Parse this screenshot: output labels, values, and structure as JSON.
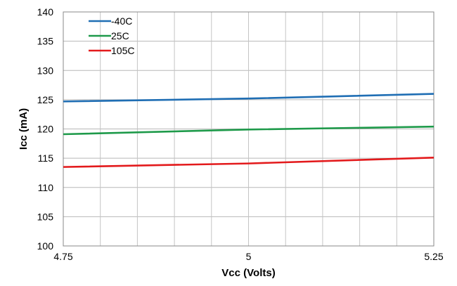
{
  "chart_data": {
    "type": "line",
    "title": "",
    "xlabel": "Vcc (Volts)",
    "ylabel": "Icc (mA)",
    "xlim": [
      4.75,
      5.25
    ],
    "ylim": [
      100,
      140
    ],
    "x_ticks": [
      4.75,
      5,
      5.25
    ],
    "x_tick_labels": [
      "4.75",
      "5",
      "5.25"
    ],
    "x_minor_step": 0.05,
    "y_ticks": [
      100,
      105,
      110,
      115,
      120,
      125,
      130,
      135,
      140
    ],
    "y_tick_labels": [
      "100",
      "105",
      "110",
      "115",
      "120",
      "125",
      "130",
      "135",
      "140"
    ],
    "grid": true,
    "legend_position": "top-left",
    "series": [
      {
        "name": "-40C",
        "color": "#1f6eb4",
        "x": [
          4.75,
          5.0,
          5.25
        ],
        "y": [
          124.7,
          125.2,
          126.0
        ]
      },
      {
        "name": "25C",
        "color": "#1e9a4a",
        "x": [
          4.75,
          5.0,
          5.25
        ],
        "y": [
          119.1,
          119.9,
          120.4
        ]
      },
      {
        "name": "105C",
        "color": "#e31a1c",
        "x": [
          4.75,
          5.0,
          5.25
        ],
        "y": [
          113.5,
          114.1,
          115.1
        ]
      }
    ]
  }
}
